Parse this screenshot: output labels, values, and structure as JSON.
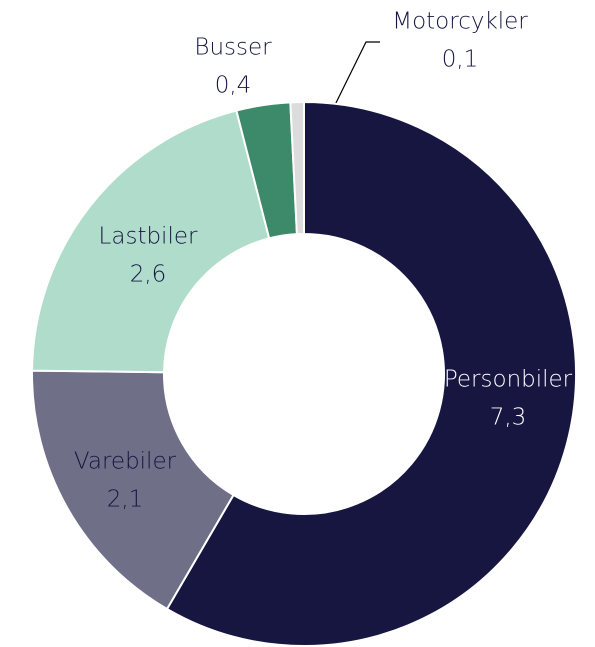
{
  "chart_data": {
    "type": "donut",
    "categories": [
      "Personbiler",
      "Varebiler",
      "Lastbiler",
      "Busser",
      "Motorcykler"
    ],
    "values": [
      7.3,
      2.1,
      2.6,
      0.4,
      0.1
    ],
    "value_labels": [
      "7,3",
      "2,1",
      "2,6",
      "0,4",
      "0,1"
    ],
    "colors": [
      "#161640",
      "#6f6f88",
      "#b0dccb",
      "#3d8a6a",
      "#dcdcdc"
    ]
  }
}
